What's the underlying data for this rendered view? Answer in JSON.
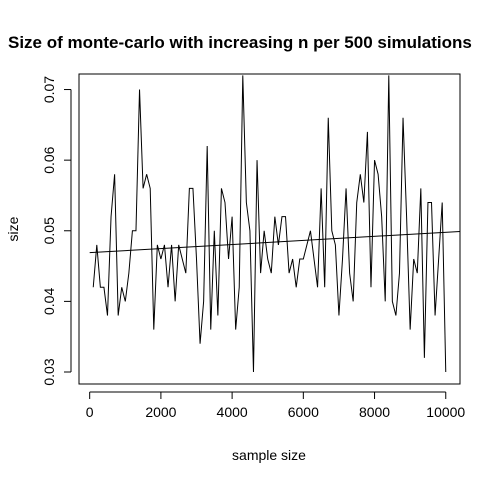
{
  "chart_data": {
    "type": "line",
    "title": "Size of monte-carlo with increasing n per 500 simulations",
    "xlabel": "sample size",
    "ylabel": "size",
    "xlim": [
      -300,
      10400
    ],
    "ylim": [
      0.0283,
      0.0722
    ],
    "xticks": [
      0,
      2000,
      4000,
      6000,
      8000,
      10000
    ],
    "xtick_labels": [
      "0",
      "2000",
      "4000",
      "6000",
      "8000",
      "10000"
    ],
    "yticks": [
      0.03,
      0.04,
      0.05,
      0.06,
      0.07
    ],
    "ytick_labels": [
      "0.03",
      "0.04",
      "0.05",
      "0.06",
      "0.07"
    ],
    "grid": false,
    "legend": "none",
    "colors": {
      "line": "#000000",
      "axes": "#000000"
    },
    "series": [
      {
        "x": [
          100,
          200,
          300,
          400,
          500,
          600,
          700,
          800,
          900,
          1000,
          1100,
          1200,
          1300,
          1400,
          1500,
          1600,
          1700,
          1800,
          1900,
          2000,
          2100,
          2200,
          2300,
          2400,
          2500,
          2600,
          2700,
          2800,
          2900,
          3000,
          3100,
          3200,
          3300,
          3400,
          3500,
          3600,
          3700,
          3800,
          3900,
          4000,
          4100,
          4200,
          4300,
          4400,
          4500,
          4600,
          4700,
          4800,
          4900,
          5000,
          5100,
          5200,
          5300,
          5400,
          5500,
          5600,
          5700,
          5800,
          5900,
          6000,
          6100,
          6200,
          6300,
          6400,
          6500,
          6600,
          6700,
          6800,
          6900,
          7000,
          7100,
          7200,
          7300,
          7400,
          7500,
          7600,
          7700,
          7800,
          7900,
          8000,
          8100,
          8200,
          8300,
          8400,
          8500,
          8600,
          8700,
          8800,
          8900,
          9000,
          9100,
          9200,
          9300,
          9400,
          9500,
          9600,
          9700,
          9800,
          9900,
          10000
        ],
        "values": [
          0.042,
          0.048,
          0.042,
          0.042,
          0.038,
          0.052,
          0.058,
          0.038,
          0.042,
          0.04,
          0.044,
          0.05,
          0.05,
          0.07,
          0.056,
          0.058,
          0.056,
          0.036,
          0.048,
          0.046,
          0.048,
          0.042,
          0.048,
          0.04,
          0.048,
          0.046,
          0.044,
          0.056,
          0.056,
          0.046,
          0.034,
          0.04,
          0.062,
          0.036,
          0.05,
          0.038,
          0.056,
          0.054,
          0.046,
          0.052,
          0.036,
          0.042,
          0.072,
          0.054,
          0.05,
          0.03,
          0.06,
          0.044,
          0.05,
          0.046,
          0.044,
          0.052,
          0.048,
          0.052,
          0.052,
          0.044,
          0.046,
          0.042,
          0.046,
          0.046,
          0.048,
          0.05,
          0.046,
          0.042,
          0.056,
          0.042,
          0.066,
          0.05,
          0.048,
          0.038,
          0.046,
          0.056,
          0.044,
          0.04,
          0.054,
          0.058,
          0.054,
          0.064,
          0.042,
          0.06,
          0.058,
          0.052,
          0.04,
          0.072,
          0.04,
          0.038,
          0.044,
          0.066,
          0.052,
          0.036,
          0.046,
          0.044,
          0.056,
          0.032,
          0.054,
          0.054,
          0.038,
          0.046,
          0.054,
          0.03
        ]
      },
      {
        "x": [
          0,
          10400
        ],
        "values": [
          0.0469,
          0.0499
        ]
      }
    ]
  }
}
